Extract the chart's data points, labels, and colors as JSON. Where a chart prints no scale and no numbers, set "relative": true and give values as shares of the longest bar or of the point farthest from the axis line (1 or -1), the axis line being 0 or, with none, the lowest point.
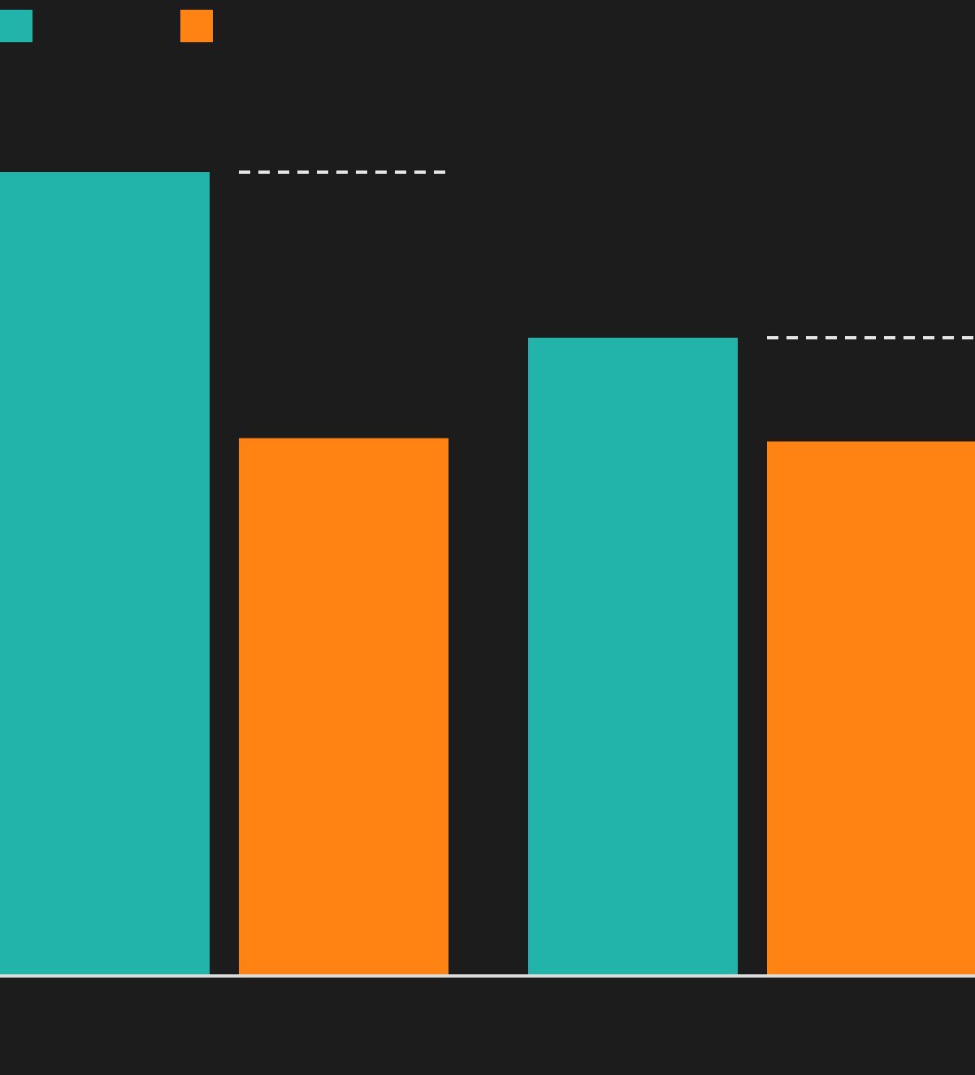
{
  "chart_data": {
    "type": "bar",
    "relative": true,
    "categories": [
      null,
      null
    ],
    "series": [
      {
        "color": "#22b3aa",
        "values": [
          1,
          0.794
        ]
      },
      {
        "color": "#ff8312",
        "values": [
          0.669,
          0.665
        ]
      }
    ],
    "ref_lines": [
      {
        "axis": "y",
        "value": 1,
        "color": "#e6e6e6",
        "line_style": "dashed"
      },
      {
        "axis": "y",
        "value": 0.794,
        "color": "#e6e6e6",
        "line_style": "dashed"
      }
    ]
  }
}
